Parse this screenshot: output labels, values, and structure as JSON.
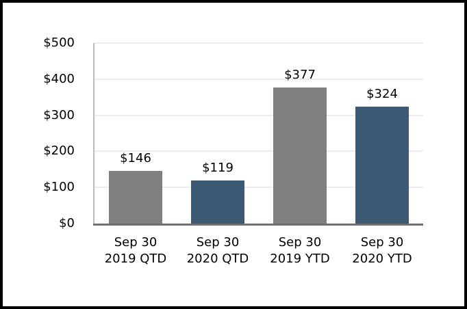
{
  "chart_data": {
    "type": "bar",
    "title": "",
    "xlabel": "",
    "ylabel": "",
    "categories": [
      "Sep 30\n2019 QTD",
      "Sep 30\n2020 QTD",
      "Sep 30\n2019 YTD",
      "Sep 30\n2020 YTD"
    ],
    "values": [
      146,
      119,
      377,
      324
    ],
    "data_labels": [
      "$146",
      "$119",
      "$377",
      "$324"
    ],
    "bar_colors": [
      "#808080",
      "#3c5a74",
      "#808080",
      "#3c5a74"
    ],
    "y_ticks": [
      "$0",
      "$100",
      "$200",
      "$300",
      "$400",
      "$500"
    ],
    "y_tick_values": [
      0,
      100,
      200,
      300,
      400,
      500
    ],
    "ylim": [
      0,
      500
    ],
    "grid": true,
    "legend": false
  },
  "colors": {
    "gray_bar": "#808080",
    "blue_bar": "#3c5a74",
    "gridline": "#ececec",
    "y_axis_line": "#bcbcbc",
    "x_axis_line": "#6f6f6f",
    "text": "#000000",
    "frame_border": "#000000",
    "background": "#ffffff"
  }
}
